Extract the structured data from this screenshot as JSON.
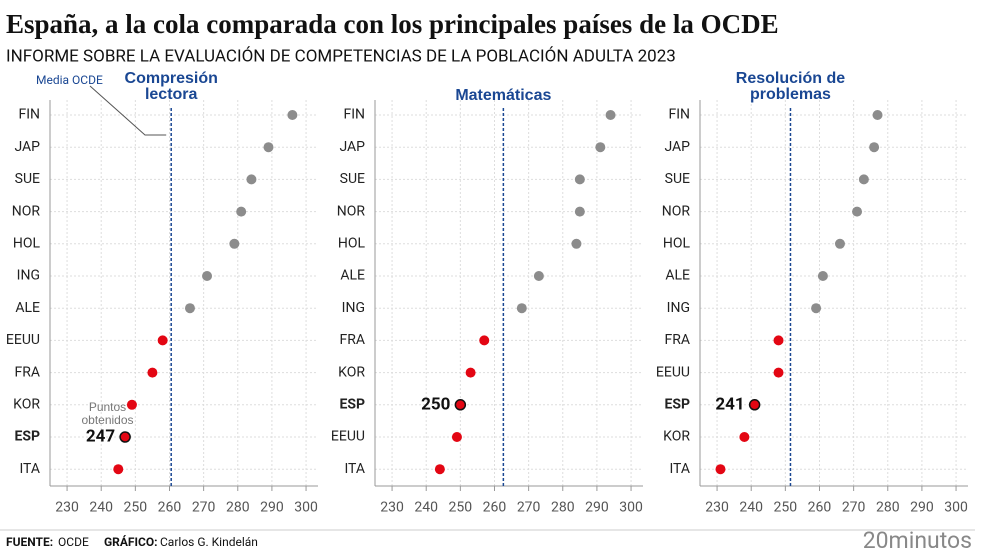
{
  "title": "España, a la cola comparada con los principales países de la OCDE",
  "subtitle": "INFORME SOBRE LA EVALUACIÓN DE COMPETENCIAS DE LA POBLACIÓN ADULTA 2023",
  "chart_data": [
    {
      "type": "dot",
      "title": "Compresión lectora",
      "categories": [
        "FIN",
        "JAP",
        "SUE",
        "NOR",
        "HOL",
        "ING",
        "ALE",
        "EEUU",
        "FRA",
        "KOR",
        "ESP",
        "ITA"
      ],
      "values": [
        296,
        289,
        284,
        281,
        279,
        271,
        266,
        258,
        255,
        249,
        247,
        245
      ],
      "value_labels": [
        null,
        null,
        null,
        null,
        null,
        null,
        null,
        null,
        null,
        null,
        "247",
        null
      ],
      "xlim": [
        225,
        303.5
      ],
      "xticks": [
        230,
        240,
        250,
        260,
        270,
        280,
        290,
        300
      ],
      "reference_value": 260.5,
      "reference_label": "Media OCDE",
      "annotation": "Puntos obtenidos",
      "color": "#8c8c8c",
      "below_color": "#e30613",
      "grid": true
    },
    {
      "type": "dot",
      "title": "Matemáticas",
      "categories": [
        "FIN",
        "JAP",
        "SUE",
        "NOR",
        "HOL",
        "ALE",
        "ING",
        "FRA",
        "KOR",
        "ESP",
        "EEUU",
        "ITA"
      ],
      "values": [
        294,
        291,
        285,
        285,
        284,
        273,
        268,
        257,
        253,
        250,
        249,
        244
      ],
      "value_labels": [
        null,
        null,
        null,
        null,
        null,
        null,
        null,
        null,
        null,
        "250",
        null,
        null
      ],
      "xlim": [
        225,
        303.5
      ],
      "xticks": [
        230,
        240,
        250,
        260,
        270,
        280,
        290,
        300
      ],
      "reference_value": 262.6,
      "color": "#8c8c8c",
      "below_color": "#e30613",
      "grid": true
    },
    {
      "type": "dot",
      "title": "Resolución de problemas",
      "categories": [
        "FIN",
        "JAP",
        "SUE",
        "NOR",
        "HOL",
        "ALE",
        "ING",
        "FRA",
        "EEUU",
        "ESP",
        "KOR",
        "ITA"
      ],
      "values": [
        277,
        276,
        273,
        271,
        266,
        261,
        259,
        248,
        248,
        241,
        238,
        231
      ],
      "value_labels": [
        null,
        null,
        null,
        null,
        null,
        null,
        null,
        null,
        null,
        "241",
        null,
        null
      ],
      "xlim": [
        225,
        303.5
      ],
      "xticks": [
        230,
        240,
        250,
        260,
        270,
        280,
        290,
        300
      ],
      "reference_value": 251.5,
      "color": "#8c8c8c",
      "below_color": "#e30613",
      "grid": true
    }
  ],
  "footer": {
    "source_label": "FUENTE:",
    "source": "OCDE",
    "credit_label": "GRÁFICO:",
    "credit": "Carlos G. Kindelán",
    "brand": "20minutos"
  }
}
